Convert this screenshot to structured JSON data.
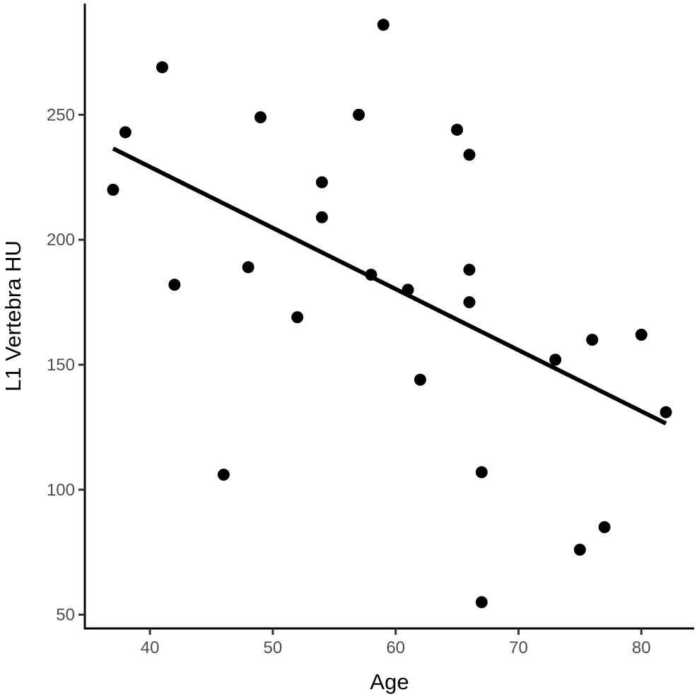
{
  "chart_data": {
    "type": "scatter",
    "xlabel": "Age",
    "ylabel": "L1 Vertebra HU",
    "xlim": [
      34.7,
      84.3
    ],
    "ylim": [
      44.5,
      294.5
    ],
    "x_ticks": [
      40,
      50,
      60,
      70,
      80
    ],
    "y_ticks": [
      50,
      100,
      150,
      200,
      250
    ],
    "grid": false,
    "legend": "none",
    "point_color": "#000000",
    "line_color": "#000000",
    "points": [
      {
        "x": 37,
        "y": 220
      },
      {
        "x": 38,
        "y": 243
      },
      {
        "x": 41,
        "y": 269
      },
      {
        "x": 42,
        "y": 182
      },
      {
        "x": 46,
        "y": 106
      },
      {
        "x": 48,
        "y": 189
      },
      {
        "x": 49,
        "y": 249
      },
      {
        "x": 52,
        "y": 169
      },
      {
        "x": 54,
        "y": 223
      },
      {
        "x": 54,
        "y": 209
      },
      {
        "x": 57,
        "y": 250
      },
      {
        "x": 58,
        "y": 186
      },
      {
        "x": 59,
        "y": 286
      },
      {
        "x": 61,
        "y": 180
      },
      {
        "x": 62,
        "y": 144
      },
      {
        "x": 65,
        "y": 244
      },
      {
        "x": 66,
        "y": 234
      },
      {
        "x": 66,
        "y": 188
      },
      {
        "x": 66,
        "y": 175
      },
      {
        "x": 67,
        "y": 107
      },
      {
        "x": 67,
        "y": 55
      },
      {
        "x": 73,
        "y": 152
      },
      {
        "x": 75,
        "y": 76
      },
      {
        "x": 76,
        "y": 160
      },
      {
        "x": 77,
        "y": 85
      },
      {
        "x": 80,
        "y": 162
      },
      {
        "x": 82,
        "y": 131
      }
    ],
    "trend_line": {
      "x": [
        37,
        82
      ],
      "y": [
        236.5,
        126.5
      ]
    }
  }
}
